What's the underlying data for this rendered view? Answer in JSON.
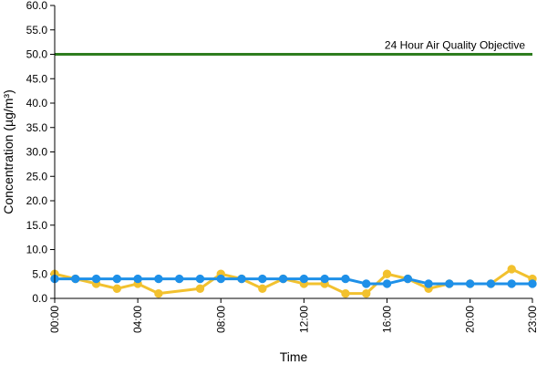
{
  "chart_data": {
    "type": "line",
    "title": "",
    "xlabel": "Time",
    "ylabel": "Concentration (µg/m³)",
    "ylim": [
      0,
      60
    ],
    "y_ticks": [
      "0.0",
      "5.0",
      "10.0",
      "15.0",
      "20.0",
      "25.0",
      "30.0",
      "35.0",
      "40.0",
      "45.0",
      "50.0",
      "55.0",
      "60.0"
    ],
    "x_ticks": [
      "00:00",
      "04:00",
      "08:00",
      "12:00",
      "16:00",
      "20:00",
      "23:00"
    ],
    "x_tick_hours": [
      0,
      4,
      8,
      12,
      16,
      20,
      23
    ],
    "x": [
      0,
      1,
      2,
      3,
      4,
      5,
      6,
      7,
      8,
      9,
      10,
      11,
      12,
      13,
      14,
      15,
      16,
      17,
      18,
      19,
      20,
      21,
      22,
      23
    ],
    "grid": false,
    "reference_line": {
      "value": 50,
      "label": "24 Hour Air Quality Objective",
      "color": "#2e7d1f"
    },
    "series": [
      {
        "color": "#f2c12e",
        "values": [
          5,
          4,
          3,
          2,
          3,
          1,
          null,
          2,
          5,
          4,
          2,
          4,
          3,
          3,
          1,
          1,
          5,
          4,
          2,
          3,
          3,
          3,
          6,
          4
        ]
      },
      {
        "color": "#1e90e8",
        "values": [
          4,
          4,
          4,
          4,
          4,
          4,
          4,
          4,
          4,
          4,
          4,
          4,
          4,
          4,
          4,
          3,
          3,
          4,
          3,
          3,
          3,
          3,
          3,
          3
        ]
      }
    ]
  }
}
